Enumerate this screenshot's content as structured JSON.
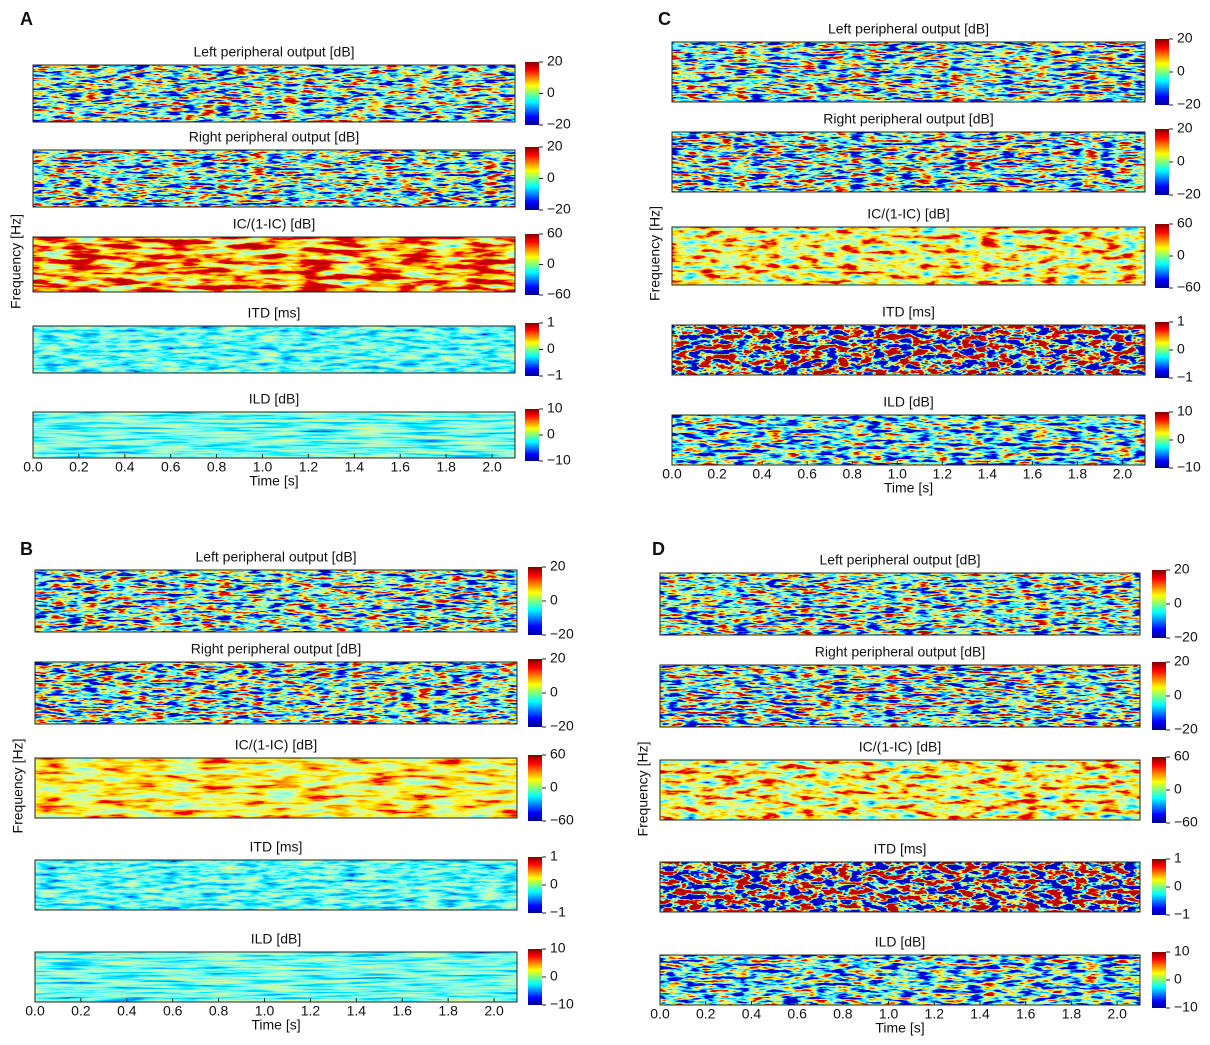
{
  "chart_data": [
    {
      "type": "heatmap",
      "panel": "A",
      "ylabel": "Frequency [Hz]",
      "xlabel": "Time [s]",
      "xlim": [
        0,
        2.1
      ],
      "xticks": [
        {
          "value": 0,
          "label": "0.0"
        },
        0.2,
        0.4,
        0.6,
        0.8,
        {
          "value": 1,
          "label": "1.0"
        },
        1.2,
        1.4,
        1.6,
        1.8,
        {
          "value": 2,
          "label": "2.0"
        }
      ],
      "subplots": [
        {
          "title": "Left peripheral output [dB]",
          "clim": [
            -20,
            20
          ],
          "cticks": [
            {
              "value": -20,
              "label": "−20"
            },
            0,
            20
          ]
        },
        {
          "title": "Right peripheral output [dB]",
          "clim": [
            -20,
            20
          ],
          "cticks": [
            {
              "value": -20,
              "label": "−20"
            },
            0,
            20
          ]
        },
        {
          "title": "IC/(1-IC) [dB]",
          "clim": [
            -60,
            60
          ],
          "cticks": [
            {
              "value": -60,
              "label": "−60"
            },
            0,
            60
          ]
        },
        {
          "title": "ITD [ms]",
          "clim": [
            -1,
            1
          ],
          "cticks": [
            {
              "value": -1,
              "label": "−1"
            },
            0,
            1
          ]
        },
        {
          "title": "ILD [dB]",
          "clim": [
            -10,
            10
          ],
          "cticks": [
            {
              "value": -10,
              "label": "−10"
            },
            0,
            10
          ]
        }
      ]
    },
    {
      "type": "heatmap",
      "panel": "B",
      "ylabel": "Frequency [Hz]",
      "xlabel": "Time [s]",
      "xlim": [
        0,
        2.1
      ],
      "xticks": [
        {
          "value": 0,
          "label": "0.0"
        },
        0.2,
        0.4,
        0.6,
        0.8,
        {
          "value": 1,
          "label": "1.0"
        },
        1.2,
        1.4,
        1.6,
        1.8,
        {
          "value": 2,
          "label": "2.0"
        }
      ],
      "subplots": [
        {
          "title": "Left peripheral output [dB]",
          "clim": [
            -20,
            20
          ],
          "cticks": [
            {
              "value": -20,
              "label": "−20"
            },
            0,
            20
          ]
        },
        {
          "title": "Right peripheral output [dB]",
          "clim": [
            -20,
            20
          ],
          "cticks": [
            {
              "value": -20,
              "label": "−20"
            },
            0,
            20
          ]
        },
        {
          "title": "IC/(1-IC) [dB]",
          "clim": [
            -60,
            60
          ],
          "cticks": [
            {
              "value": -60,
              "label": "−60"
            },
            0,
            60
          ]
        },
        {
          "title": "ITD [ms]",
          "clim": [
            -1,
            1
          ],
          "cticks": [
            {
              "value": -1,
              "label": "−1"
            },
            0,
            1
          ]
        },
        {
          "title": "ILD [dB]",
          "clim": [
            -10,
            10
          ],
          "cticks": [
            {
              "value": -10,
              "label": "−10"
            },
            0,
            10
          ]
        }
      ]
    },
    {
      "type": "heatmap",
      "panel": "C",
      "ylabel": "Frequency [Hz]",
      "xlabel": "Time [s]",
      "xlim": [
        0,
        2.1
      ],
      "xticks": [
        {
          "value": 0,
          "label": "0.0"
        },
        0.2,
        0.4,
        0.6,
        0.8,
        {
          "value": 1,
          "label": "1.0"
        },
        1.2,
        1.4,
        1.6,
        1.8,
        {
          "value": 2,
          "label": "2.0"
        }
      ],
      "subplots": [
        {
          "title": "Left peripheral output [dB]",
          "clim": [
            -20,
            20
          ],
          "cticks": [
            {
              "value": -20,
              "label": "−20"
            },
            0,
            20
          ]
        },
        {
          "title": "Right peripheral output [dB]",
          "clim": [
            -20,
            20
          ],
          "cticks": [
            {
              "value": -20,
              "label": "−20"
            },
            0,
            20
          ]
        },
        {
          "title": "IC/(1-IC) [dB]",
          "clim": [
            -60,
            60
          ],
          "cticks": [
            {
              "value": -60,
              "label": "−60"
            },
            0,
            60
          ]
        },
        {
          "title": "ITD [ms]",
          "clim": [
            -1,
            1
          ],
          "cticks": [
            {
              "value": -1,
              "label": "−1"
            },
            0,
            1
          ]
        },
        {
          "title": "ILD [dB]",
          "clim": [
            -10,
            10
          ],
          "cticks": [
            {
              "value": -10,
              "label": "−10"
            },
            0,
            10
          ]
        }
      ]
    },
    {
      "type": "heatmap",
      "panel": "D",
      "ylabel": "Frequency [Hz]",
      "xlabel": "Time [s]",
      "xlim": [
        0,
        2.1
      ],
      "xticks": [
        {
          "value": 0,
          "label": "0.0"
        },
        0.2,
        0.4,
        0.6,
        0.8,
        {
          "value": 1,
          "label": "1.0"
        },
        1.2,
        1.4,
        1.6,
        1.8,
        {
          "value": 2,
          "label": "2.0"
        }
      ],
      "subplots": [
        {
          "title": "Left peripheral output [dB]",
          "clim": [
            -20,
            20
          ],
          "cticks": [
            {
              "value": -20,
              "label": "−20"
            },
            0,
            20
          ]
        },
        {
          "title": "Right peripheral output [dB]",
          "clim": [
            -20,
            20
          ],
          "cticks": [
            {
              "value": -20,
              "label": "−20"
            },
            0,
            20
          ]
        },
        {
          "title": "IC/(1-IC) [dB]",
          "clim": [
            -60,
            60
          ],
          "cticks": [
            {
              "value": -60,
              "label": "−60"
            },
            0,
            60
          ]
        },
        {
          "title": "ITD [ms]",
          "clim": [
            -1,
            1
          ],
          "cticks": [
            {
              "value": -1,
              "label": "−1"
            },
            0,
            1
          ]
        },
        {
          "title": "ILD [dB]",
          "clim": [
            -10,
            10
          ],
          "cticks": [
            {
              "value": -10,
              "label": "−10"
            },
            0,
            10
          ]
        }
      ]
    }
  ]
}
